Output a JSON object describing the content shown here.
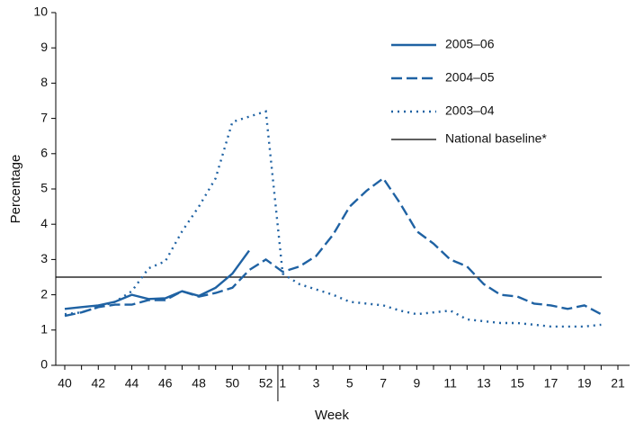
{
  "chart_data": {
    "type": "line",
    "xlabel": "Week",
    "ylabel": "Percentage",
    "categories": [
      "40",
      null,
      "42",
      null,
      "44",
      null,
      "46",
      null,
      "48",
      null,
      "50",
      null,
      "52",
      "1",
      null,
      "3",
      null,
      "5",
      null,
      "7",
      null,
      "9",
      null,
      "11",
      null,
      "13",
      null,
      "15",
      null,
      "17",
      null,
      "19",
      null,
      "21"
    ],
    "series": [
      {
        "name": "2005–06",
        "color": "#1f62a3",
        "style": "solid",
        "values": [
          1.6,
          1.65,
          1.7,
          1.8,
          2.0,
          1.88,
          1.9,
          2.1,
          1.97,
          2.2,
          2.6,
          3.25,
          null,
          null,
          null,
          null,
          null,
          null,
          null,
          null,
          null,
          null,
          null,
          null,
          null,
          null,
          null,
          null,
          null,
          null,
          null,
          null,
          null,
          null
        ]
      },
      {
        "name": "2004–05",
        "color": "#1f62a3",
        "style": "dashed",
        "values": [
          1.4,
          1.5,
          1.65,
          1.72,
          1.72,
          1.85,
          1.85,
          2.1,
          1.95,
          2.05,
          2.2,
          2.7,
          3.0,
          2.65,
          2.8,
          3.1,
          3.7,
          4.5,
          4.95,
          5.3,
          4.6,
          3.8,
          3.45,
          3.0,
          2.8,
          2.3,
          2.0,
          1.95,
          1.75,
          1.7,
          1.6,
          1.7,
          1.45,
          null
        ]
      },
      {
        "name": "2003–04",
        "color": "#1f62a3",
        "style": "dotted",
        "values": [
          1.45,
          1.5,
          1.65,
          1.8,
          2.1,
          2.75,
          2.95,
          3.8,
          4.5,
          5.3,
          6.9,
          7.05,
          7.2,
          2.6,
          2.3,
          2.15,
          2.0,
          1.8,
          1.75,
          1.7,
          1.55,
          1.45,
          1.5,
          1.55,
          1.3,
          1.25,
          1.2,
          1.2,
          1.15,
          1.1,
          1.1,
          1.1,
          1.15,
          null
        ]
      }
    ],
    "baseline": {
      "name": "National baseline*",
      "value": 2.5,
      "color": "#000000"
    },
    "ylim": [
      0,
      10
    ],
    "yticks": [
      0,
      1,
      2,
      3,
      4,
      5,
      6,
      7,
      8,
      9,
      10
    ]
  }
}
